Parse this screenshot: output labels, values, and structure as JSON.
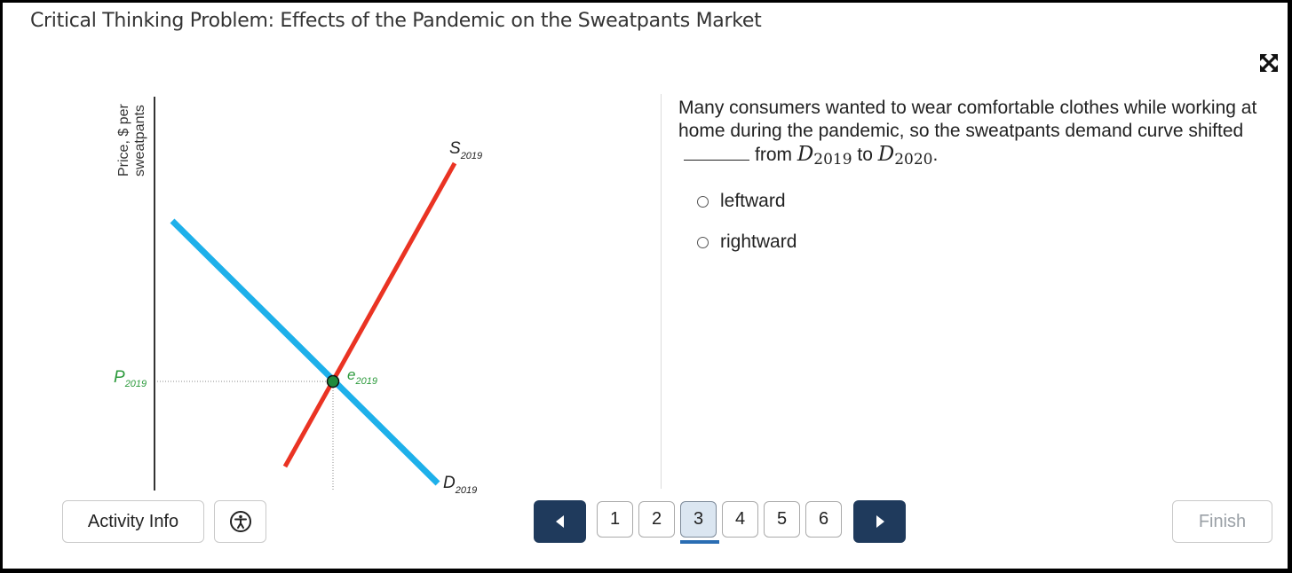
{
  "title": "Critical Thinking Problem: Effects of the Pandemic on the Sweatpants Market",
  "graph": {
    "y_axis_label_line1": "Price, $ per",
    "y_axis_label_line2": "sweatpants",
    "supply_label": "S",
    "supply_sub": "2019",
    "demand_label": "D",
    "demand_sub": "2019",
    "price_label": "P",
    "price_sub": "2019",
    "equilibrium_label": "e",
    "equilibrium_sub": "2019",
    "colors": {
      "supply": "#ea3323",
      "demand": "#1eb0ea",
      "equilibrium": "#1f8a3c",
      "axis": "#333333",
      "price_label": "#2c9a3c"
    }
  },
  "question": {
    "text_part1": "Many consumers wanted to wear comfortable clothes while working at home during the pandemic, so the sweatpants demand curve shifted",
    "text_part2": "from",
    "var1": "D",
    "var1_sub": "2019",
    "text_part3": "to",
    "var2": "D",
    "var2_sub": "2020",
    "period": "."
  },
  "options": [
    "leftward",
    "rightward"
  ],
  "footer": {
    "activity_info": "Activity Info",
    "pages": [
      "1",
      "2",
      "3",
      "4",
      "5",
      "6"
    ],
    "current_page": "3",
    "finish": "Finish"
  }
}
